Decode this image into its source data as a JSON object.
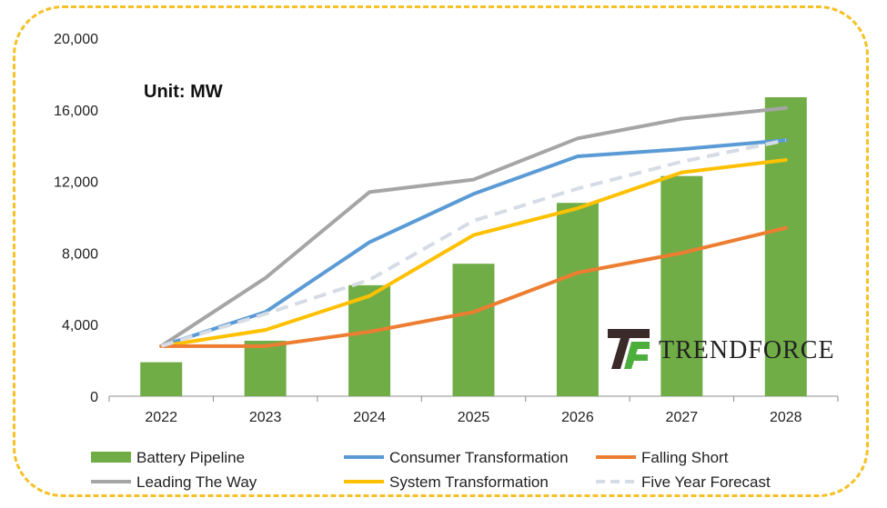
{
  "chart_data": {
    "type": "bar",
    "unit_label": "Unit: MW",
    "categories": [
      "2022",
      "2023",
      "2024",
      "2025",
      "2026",
      "2027",
      "2028"
    ],
    "ylim": [
      0,
      20000
    ],
    "yticks": [
      "0",
      "4,000",
      "8,000",
      "12,000",
      "16,000",
      "20,000"
    ],
    "ytick_values": [
      0,
      4000,
      8000,
      12000,
      16000,
      20000
    ],
    "grid": false,
    "legend_position": "bottom",
    "bar_series": {
      "name": "Battery Pipeline",
      "color": "#70ad47",
      "values": [
        1900,
        3100,
        6200,
        7400,
        10800,
        12300,
        16700
      ]
    },
    "line_series": [
      {
        "name": "Leading The Way",
        "color": "#a5a5a5",
        "dash": false,
        "values": [
          2800,
          6600,
          11400,
          12100,
          14400,
          15500,
          16100
        ]
      },
      {
        "name": "Consumer Transformation",
        "color": "#5b9bd5",
        "dash": false,
        "values": [
          2800,
          4700,
          8600,
          11300,
          13400,
          13800,
          14300
        ]
      },
      {
        "name": "System Transformation",
        "color": "#ffc000",
        "dash": false,
        "values": [
          2800,
          3700,
          5600,
          9000,
          10500,
          12500,
          13200
        ]
      },
      {
        "name": "Falling Short",
        "color": "#ed7d31",
        "dash": false,
        "values": [
          2800,
          2800,
          3600,
          4700,
          6900,
          8000,
          9400
        ]
      },
      {
        "name": "Five Year Forecast",
        "color": "#d6dce5",
        "dash": true,
        "values": [
          2800,
          4600,
          6500,
          9800,
          11600,
          13100,
          14300
        ]
      }
    ],
    "legend": [
      {
        "name": "Battery Pipeline",
        "kind": "bar",
        "color": "#70ad47"
      },
      {
        "name": "Consumer Transformation",
        "kind": "line",
        "color": "#5b9bd5"
      },
      {
        "name": "Falling Short",
        "kind": "line",
        "color": "#ed7d31"
      },
      {
        "name": "Leading The Way",
        "kind": "line",
        "color": "#a5a5a5"
      },
      {
        "name": "System Transformation",
        "kind": "line",
        "color": "#ffc000"
      },
      {
        "name": "Five Year Forecast",
        "kind": "dash",
        "color": "#d6dce5"
      }
    ],
    "logo_text": "TRENDFORCE"
  },
  "frame_color": "#f5c126"
}
